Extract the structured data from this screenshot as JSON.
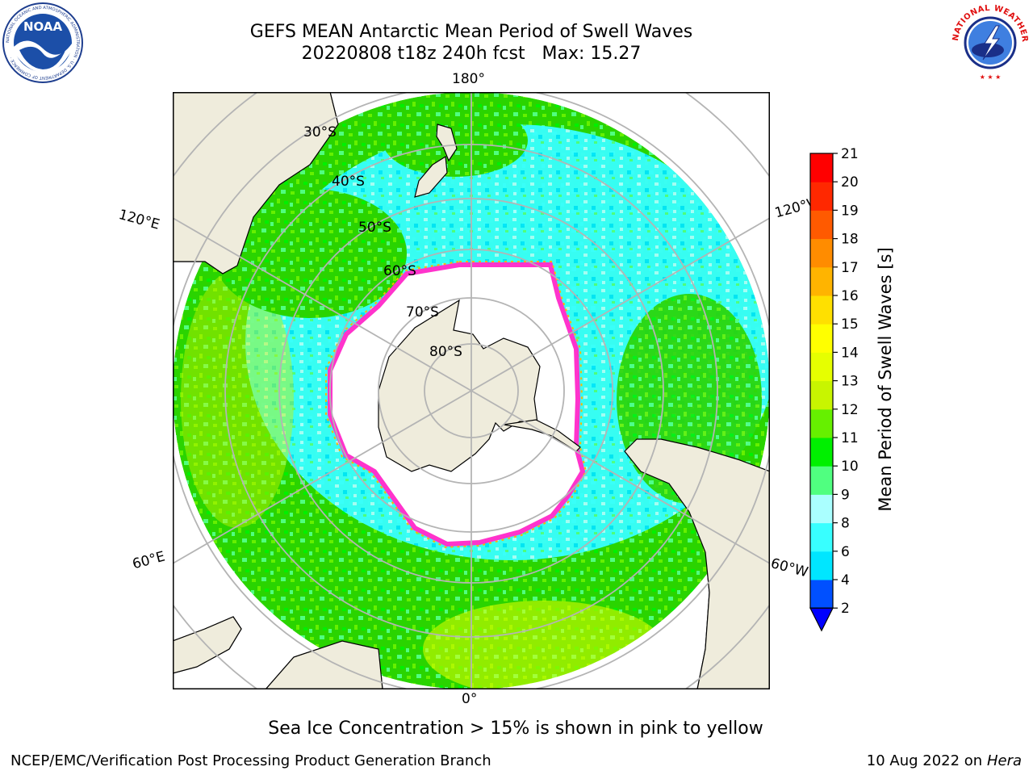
{
  "header": {
    "title_line1": "GEFS MEAN Antarctic Mean Period of Swell Waves",
    "title_line2": "20220808 t18z 240h fcst   Max: 15.27"
  },
  "map": {
    "projection": "south-polar-stereographic",
    "lat_labels": [
      "30°S",
      "40°S",
      "50°S",
      "60°S",
      "70°S",
      "80°S"
    ],
    "lon_labels": {
      "top": "180°",
      "bottom": "0°",
      "left_upper": "120°E",
      "right_upper": "120°W",
      "left_lower": "60°E",
      "right_lower": "60°W"
    },
    "colors": {
      "land": "#efecdc",
      "ice_free_background": "#ffffff",
      "graticule": "#b4b4b4",
      "sea_ice_edge": "#ff33cc"
    }
  },
  "colorbar": {
    "label": "Mean Period of Swell Waves [s]",
    "ticks": [
      "21",
      "20",
      "19",
      "18",
      "17",
      "16",
      "15",
      "14",
      "13",
      "12",
      "11",
      "10",
      "9",
      "8",
      "6",
      "4",
      "2"
    ],
    "colors_bottom_to_top": [
      "#0050ff",
      "#00e6ff",
      "#38ffff",
      "#aaffff",
      "#50ff80",
      "#00f000",
      "#66f000",
      "#c8f500",
      "#e6ff00",
      "#ffff00",
      "#ffe000",
      "#ffb400",
      "#ff8c00",
      "#ff5a00",
      "#ff2800",
      "#ff0000"
    ],
    "extend_color": "#0000ff"
  },
  "footer": {
    "note": "Sea Ice Concentration > 15% is shown in pink to yellow",
    "credit": "NCEP/EMC/Verification Post Processing Product Generation Branch",
    "date": "10 Aug 2022 on",
    "machine": "Hera"
  },
  "logos": {
    "noaa_text": "NOAA",
    "noaa_ring_text": "NATIONAL OCEANIC AND ATMOSPHERIC ADMINISTRATION · U.S. DEPARTMENT OF COMMERCE ·",
    "nws_ring_text": "NATIONAL WEATHER SERVICE"
  }
}
